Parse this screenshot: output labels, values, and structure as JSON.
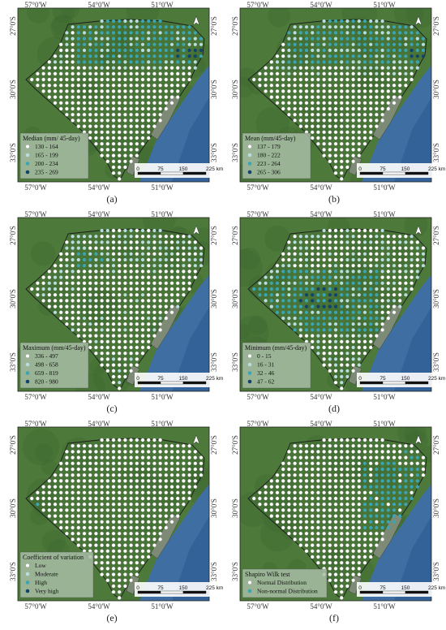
{
  "colors": {
    "water": "#3f6ea3",
    "ocean_deep": "#2d5c93",
    "land": "#4d7a3a",
    "land_dark": "#3c6630",
    "lagoon": "#7d8a76",
    "legend_bg": "#a9bda6",
    "cls1": "#ffffff",
    "cls2": "#b9dcde",
    "cls3": "#3aa6b5",
    "cls4": "#10436d"
  },
  "coords": {
    "top": [
      "57°0'W",
      "54°0'W",
      "51°0'W"
    ],
    "bottom": [
      "57°0'W",
      "54°0'W",
      "51°0'W"
    ],
    "left": [
      "27°0'S",
      "30°0'S",
      "33°0'S"
    ],
    "right": [
      "27°0'S",
      "30°0'S",
      "33°0'S"
    ]
  },
  "north_arrow": "north-arrow-icon",
  "scalebar": {
    "labels": [
      "0",
      "75",
      "150",
      "225 km"
    ]
  },
  "panels": [
    {
      "caption": "(a)",
      "legend_title": "Median (mm/ 45-day)",
      "legend_items": [
        {
          "label": "130 - 164",
          "class": 1
        },
        {
          "label": "165 - 199",
          "class": 2
        },
        {
          "label": "200 - 234",
          "class": 3
        },
        {
          "label": "235 - 269",
          "class": 4
        }
      ],
      "pattern": "median"
    },
    {
      "caption": "(b)",
      "legend_title": "Mean (mm/45-day)",
      "legend_items": [
        {
          "label": "137 - 179",
          "class": 1
        },
        {
          "label": "180 - 222",
          "class": 2
        },
        {
          "label": "223 - 264",
          "class": 3
        },
        {
          "label": "265 - 306",
          "class": 4
        }
      ],
      "pattern": "mean"
    },
    {
      "caption": "(c)",
      "legend_title": "Maximum (mm/45-day)",
      "legend_items": [
        {
          "label": "336 - 497",
          "class": 1
        },
        {
          "label": "498 - 658",
          "class": 2
        },
        {
          "label": "659 - 819",
          "class": 3
        },
        {
          "label": "820 - 980",
          "class": 4
        }
      ],
      "pattern": "maximum"
    },
    {
      "caption": "(d)",
      "legend_title": "Minimum (mm/45-day)",
      "legend_items": [
        {
          "label": "0 - 15",
          "class": 1
        },
        {
          "label": "16 - 31",
          "class": 2
        },
        {
          "label": "32 - 46",
          "class": 3
        },
        {
          "label": "47 - 62",
          "class": 4
        }
      ],
      "pattern": "minimum"
    },
    {
      "caption": "(e)",
      "legend_title": "Coefficient of variation",
      "legend_items": [
        {
          "label": "Low",
          "class": 1
        },
        {
          "label": "Moderate",
          "class": 2
        },
        {
          "label": "High",
          "class": 3
        },
        {
          "label": "Very high",
          "class": 4
        }
      ],
      "pattern": "cv"
    },
    {
      "caption": "(f)",
      "legend_title": "Shapiro Wilk test",
      "legend_items": [
        {
          "label": "Normal Distribution",
          "class": 1
        },
        {
          "label": "Non-normal Distribution",
          "class": 3
        }
      ],
      "pattern": "shapiro"
    }
  ]
}
